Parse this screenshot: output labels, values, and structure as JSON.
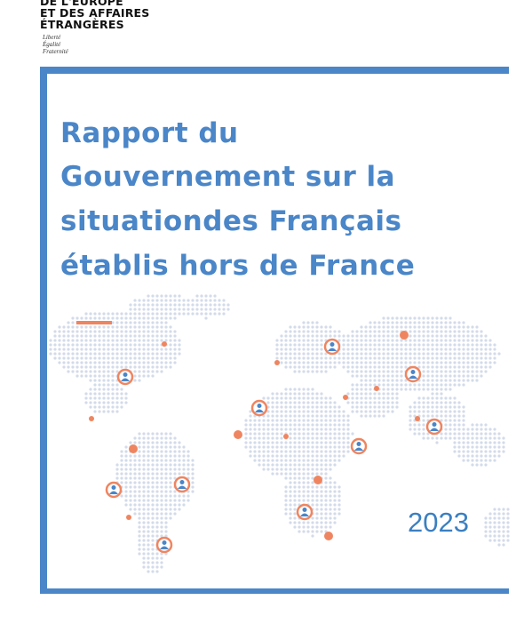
{
  "header": {
    "ministry": [
      "DE L'EUROPE",
      "ET DES AFFAIRES",
      "ÉTRANGÈRES"
    ],
    "motto": [
      "Liberté",
      "Égalité",
      "Fraternité"
    ]
  },
  "cover": {
    "title_lines": [
      "Rapport du",
      "Gouvernement sur la",
      "situationdes Français",
      "établis hors de France"
    ],
    "year": "2023"
  }
}
